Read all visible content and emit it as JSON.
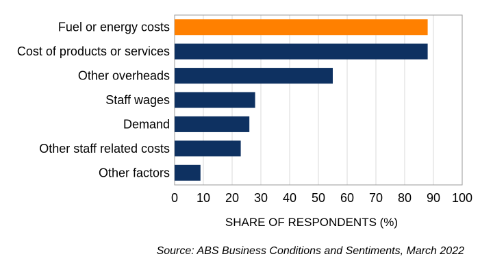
{
  "chart_data": {
    "type": "bar",
    "orientation": "horizontal",
    "categories": [
      "Fuel or energy costs",
      "Cost of products or services",
      "Other overheads",
      "Staff wages",
      "Demand",
      "Other staff related costs",
      "Other factors"
    ],
    "values": [
      88,
      88,
      55,
      28,
      26,
      23,
      9
    ],
    "bar_colors": [
      "#ff8000",
      "#0e3161",
      "#0e3161",
      "#0e3161",
      "#0e3161",
      "#0e3161",
      "#0e3161"
    ],
    "xlabel": "SHARE OF RESPONDENTS (%)",
    "xlim": [
      0,
      100
    ],
    "xticks": [
      "0",
      "10",
      "20",
      "30",
      "40",
      "50",
      "60",
      "70",
      "80",
      "90",
      "100"
    ],
    "grid": "vertical",
    "legend": "none"
  },
  "source": "Source: ABS Business Conditions and Sentiments, March 2022",
  "colors": {
    "highlight": "#ff8000",
    "primary": "#0e3161",
    "gridline": "#dadada",
    "frame": "#9a9a9a"
  }
}
